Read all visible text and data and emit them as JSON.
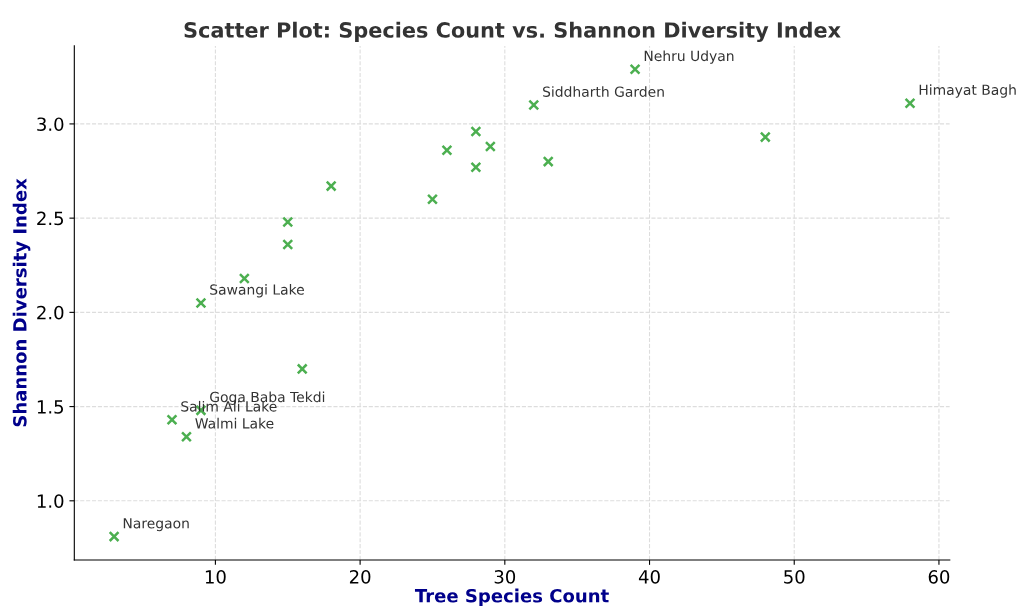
{
  "chart_data": {
    "type": "scatter",
    "title": "Scatter Plot: Species Count vs. Shannon Diversity Index",
    "xlabel": "Tree Species Count",
    "ylabel": "Shannon Diversity Index",
    "x": [
      3,
      7,
      8,
      9,
      9,
      12,
      15,
      15,
      16,
      18,
      25,
      26,
      28,
      28,
      29,
      32,
      33,
      39,
      48,
      58
    ],
    "series": [
      {
        "color": "#4caf50",
        "values": [
          0.81,
          1.43,
          1.34,
          1.48,
          2.05,
          2.18,
          2.48,
          2.36,
          1.7,
          2.67,
          2.6,
          2.86,
          2.96,
          2.77,
          2.88,
          3.1,
          2.8,
          3.29,
          2.93,
          3.11
        ]
      }
    ],
    "xlim": [
      0.25,
      60.75
    ],
    "ylim": [
      0.686,
      3.414
    ],
    "xticks": [
      10,
      20,
      30,
      40,
      50,
      60
    ],
    "yticks": [
      {
        "value": 1.0,
        "label": "1.0"
      },
      {
        "value": 1.5,
        "label": "1.5"
      },
      {
        "value": 2.0,
        "label": "2.0"
      },
      {
        "value": 2.5,
        "label": "2.5"
      },
      {
        "value": 3.0,
        "label": "3.0"
      }
    ],
    "grid": true,
    "marker": "cross",
    "annotations": [
      {
        "text": "Naregaon",
        "x": 3,
        "y": 0.81
      },
      {
        "text": "Salim Ali Lake",
        "x": 7,
        "y": 1.43
      },
      {
        "text": "Walmi Lake",
        "x": 8,
        "y": 1.34
      },
      {
        "text": "Goga Baba Tekdi",
        "x": 9,
        "y": 1.48
      },
      {
        "text": "Sawangi Lake",
        "x": 9,
        "y": 2.05
      },
      {
        "text": "Siddharth Garden",
        "x": 32,
        "y": 3.1
      },
      {
        "text": "Nehru Udyan",
        "x": 39,
        "y": 3.29
      },
      {
        "text": "Himayat Bagh",
        "x": 58,
        "y": 3.11
      }
    ]
  }
}
